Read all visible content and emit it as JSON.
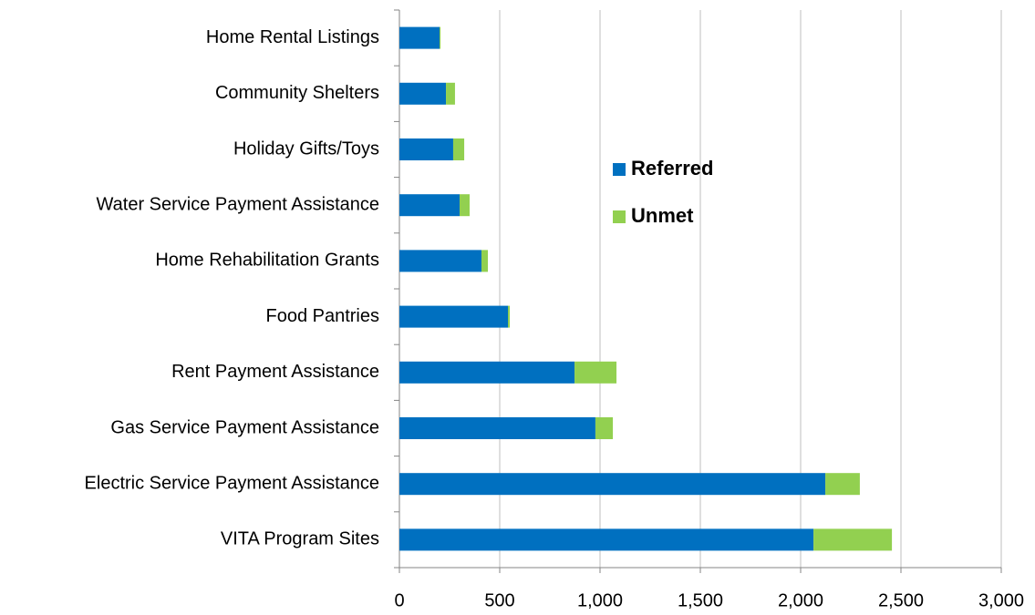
{
  "chart_data": {
    "type": "bar",
    "orientation": "horizontal",
    "stacked": true,
    "categories": [
      "Home Rental Listings",
      "Community Shelters",
      "Holiday Gifts/Toys",
      "Water Service Payment Assistance",
      "Home Rehabilitation Grants",
      "Food Pantries",
      "Rent Payment Assistance",
      "Gas Service Payment Assistance",
      "Electric Service Payment Assistance",
      "VITA Program Sites"
    ],
    "series": [
      {
        "name": "Referred",
        "color": "#0070c0",
        "values": [
          200,
          232,
          268,
          300,
          409,
          541,
          873,
          977,
          2123,
          2064
        ]
      },
      {
        "name": "Unmet",
        "color": "#92d050",
        "values": [
          5,
          45,
          55,
          50,
          32,
          9,
          209,
          87,
          172,
          391
        ]
      }
    ],
    "xlim": [
      0,
      3000
    ],
    "xticks": [
      0,
      500,
      {
        "value": 1000,
        "label": "1,000"
      },
      {
        "value": 1500,
        "label": "1,500"
      },
      {
        "value": 2000,
        "label": "2,000"
      },
      {
        "value": 2500,
        "label": "2,500"
      },
      {
        "value": 3000,
        "label": "3,000"
      }
    ],
    "grid": true
  }
}
